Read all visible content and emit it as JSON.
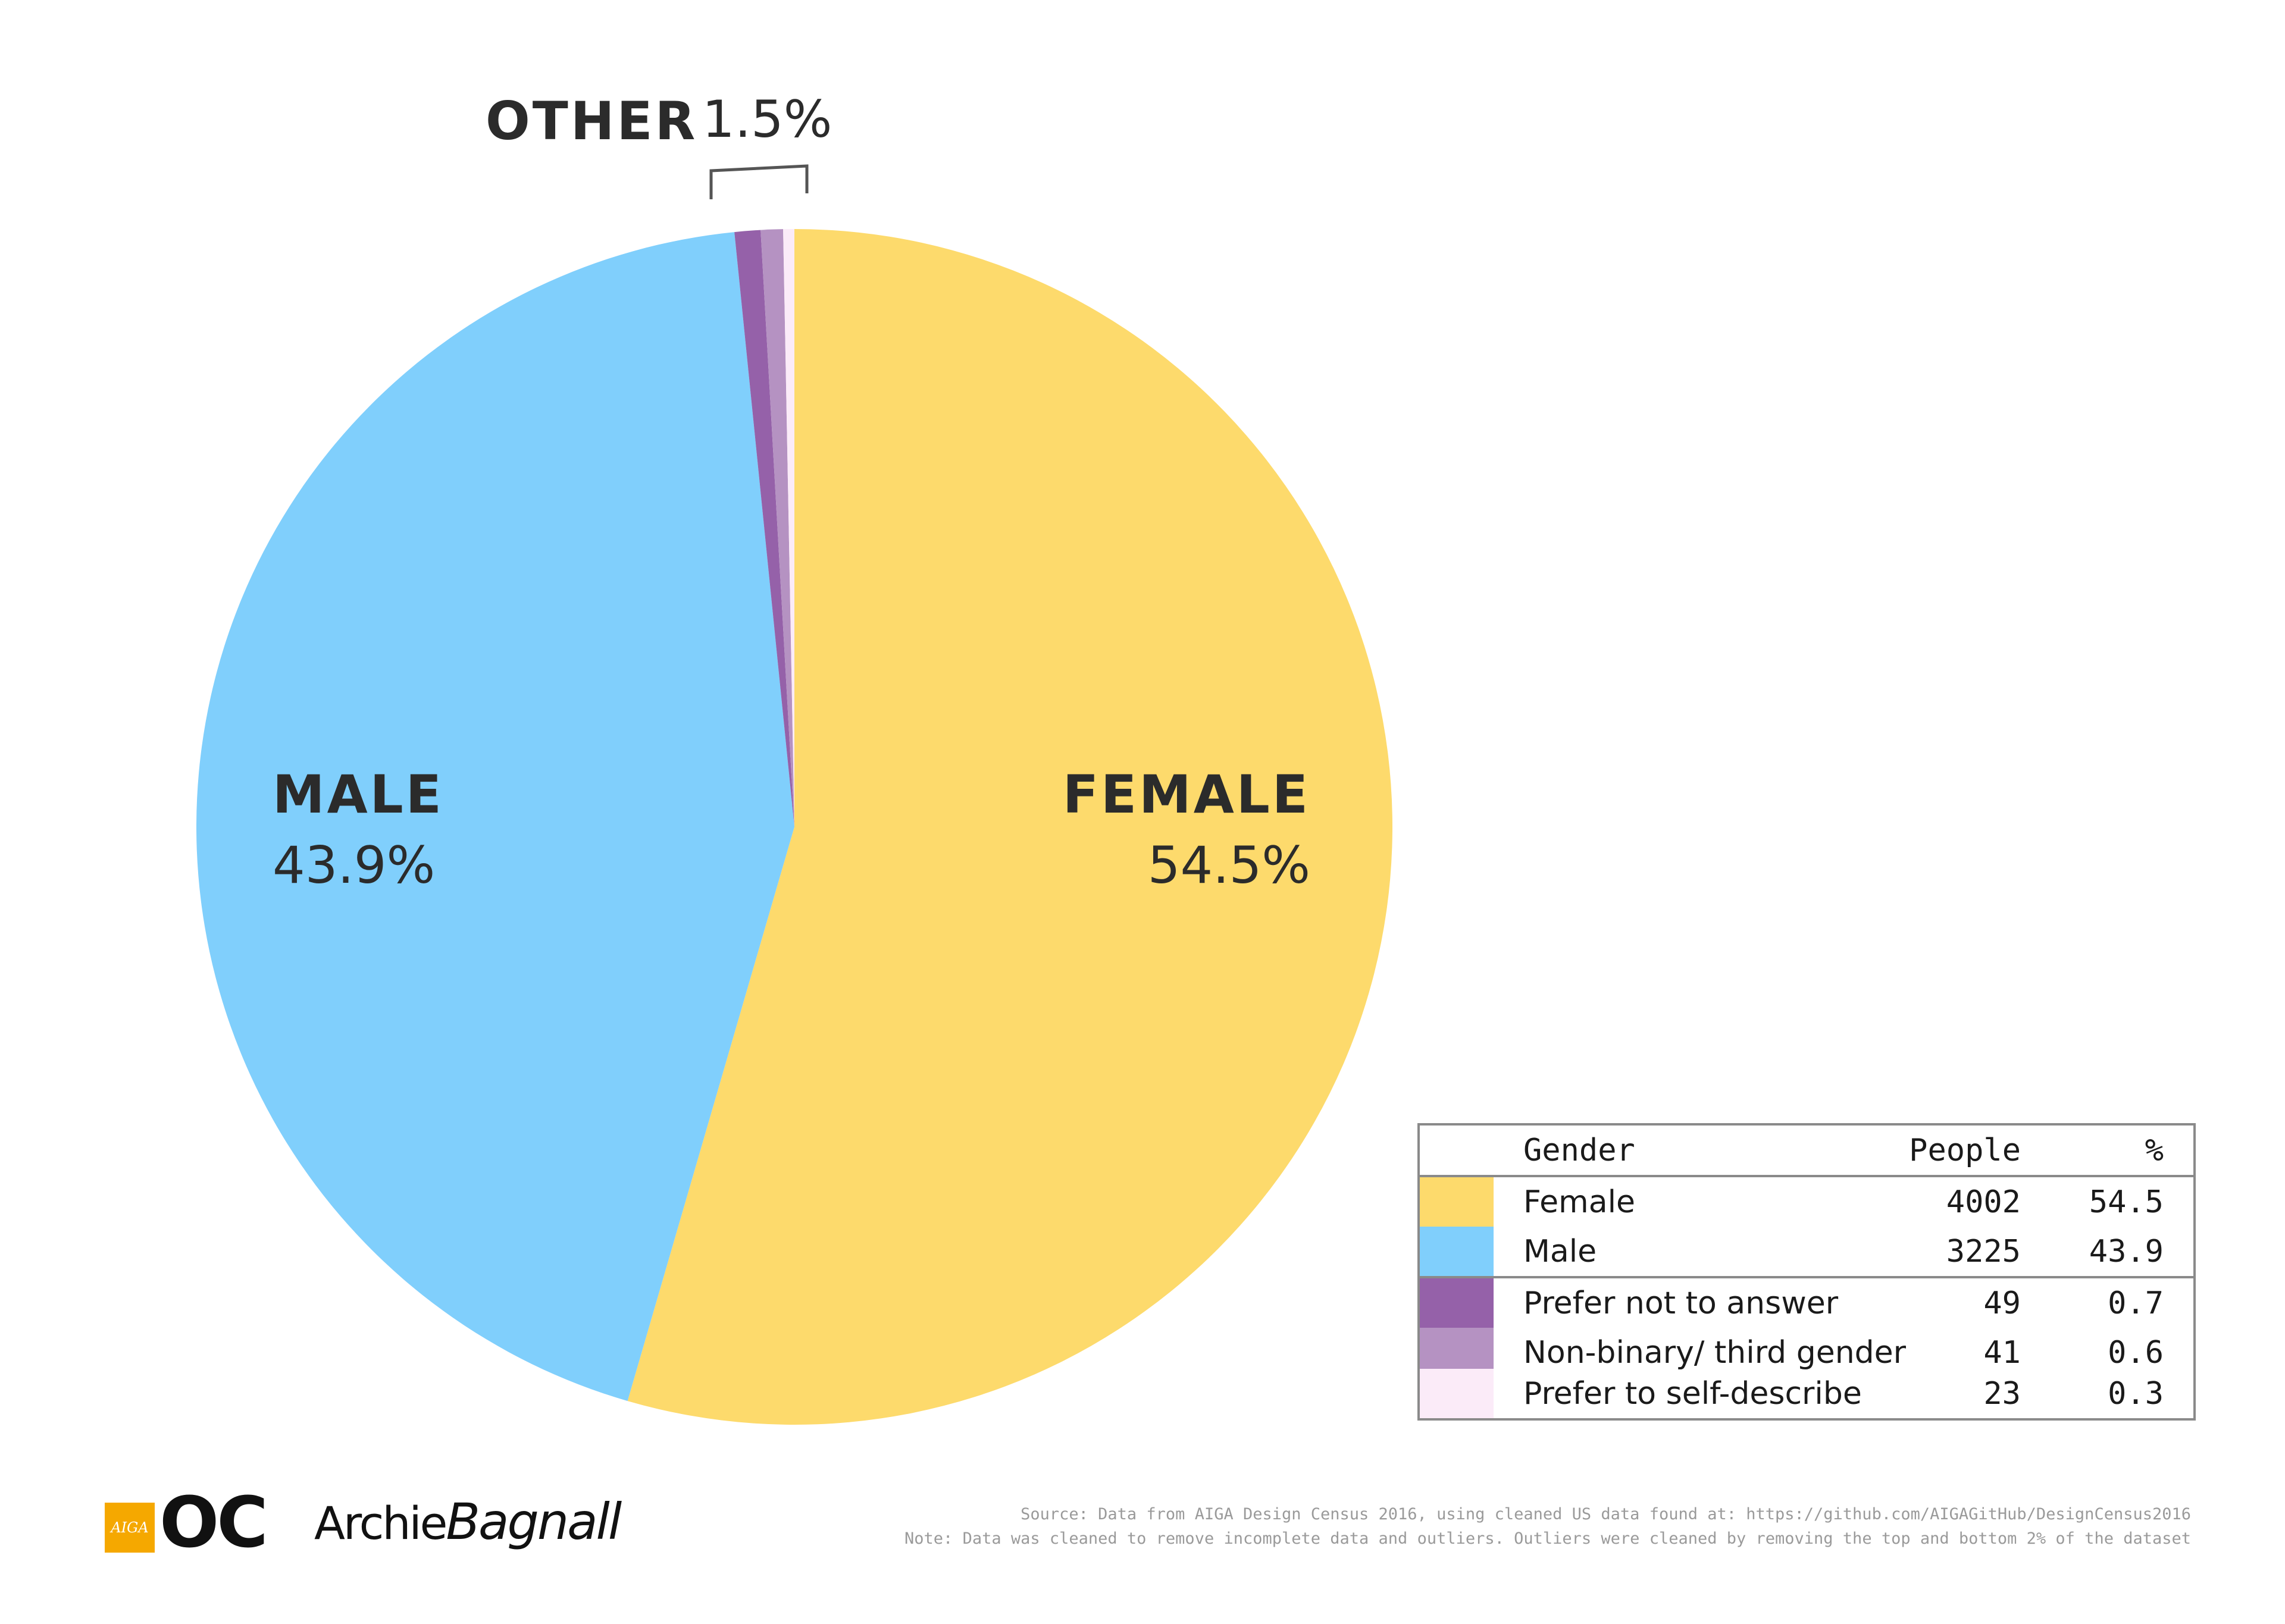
{
  "chart_data": {
    "type": "pie",
    "slices": [
      {
        "label": "Female",
        "value": 54.5,
        "people": 4002,
        "color": "#FDDA6C"
      },
      {
        "label": "Male",
        "value": 43.9,
        "people": 3225,
        "color": "#80CFFC"
      },
      {
        "label": "Prefer not to answer",
        "value": 0.7,
        "people": 49,
        "color": "#9561A9"
      },
      {
        "label": "Non-binary/ third gender",
        "value": 0.6,
        "people": 41,
        "color": "#B592C2"
      },
      {
        "label": "Prefer to self-describe",
        "value": 0.3,
        "people": 23,
        "color": "#FBEBF8"
      }
    ],
    "slice_labels": {
      "female": {
        "name": "FEMALE",
        "pct": "54.5%"
      },
      "male": {
        "name": "MALE",
        "pct": "43.9%"
      },
      "other": {
        "name": "OTHER",
        "pct": "1.5%"
      }
    }
  },
  "legend": {
    "headers": {
      "gender": "Gender",
      "people": "People",
      "pct": "%"
    },
    "rows": [
      {
        "name": "Female",
        "people": "4002",
        "pct": "54.5",
        "color": "#FDDA6C"
      },
      {
        "name": "Male",
        "people": "3225",
        "pct": "43.9",
        "color": "#80CFFC"
      },
      {
        "name": "Prefer not to answer",
        "people": "49",
        "pct": "0.7",
        "color": "#9561A9"
      },
      {
        "name": "Non-binary/ third gender",
        "people": "41",
        "pct": "0.6",
        "color": "#B592C2"
      },
      {
        "name": "Prefer to self-describe",
        "people": "23",
        "pct": "0.3",
        "color": "#FBEBF8"
      }
    ]
  },
  "footer": {
    "aiga_logo": "AIGA",
    "oc_logo": "OC",
    "author_first": "Archie",
    "author_last": "Bagnall",
    "source": "Source: Data from AIGA Design Census 2016, using cleaned US data found at: https://github.com/AIGAGitHub/DesignCensus2016",
    "note": "Note: Data was cleaned to remove incomplete data and outliers. Outliers were cleaned by removing the top and bottom 2% of the dataset"
  }
}
